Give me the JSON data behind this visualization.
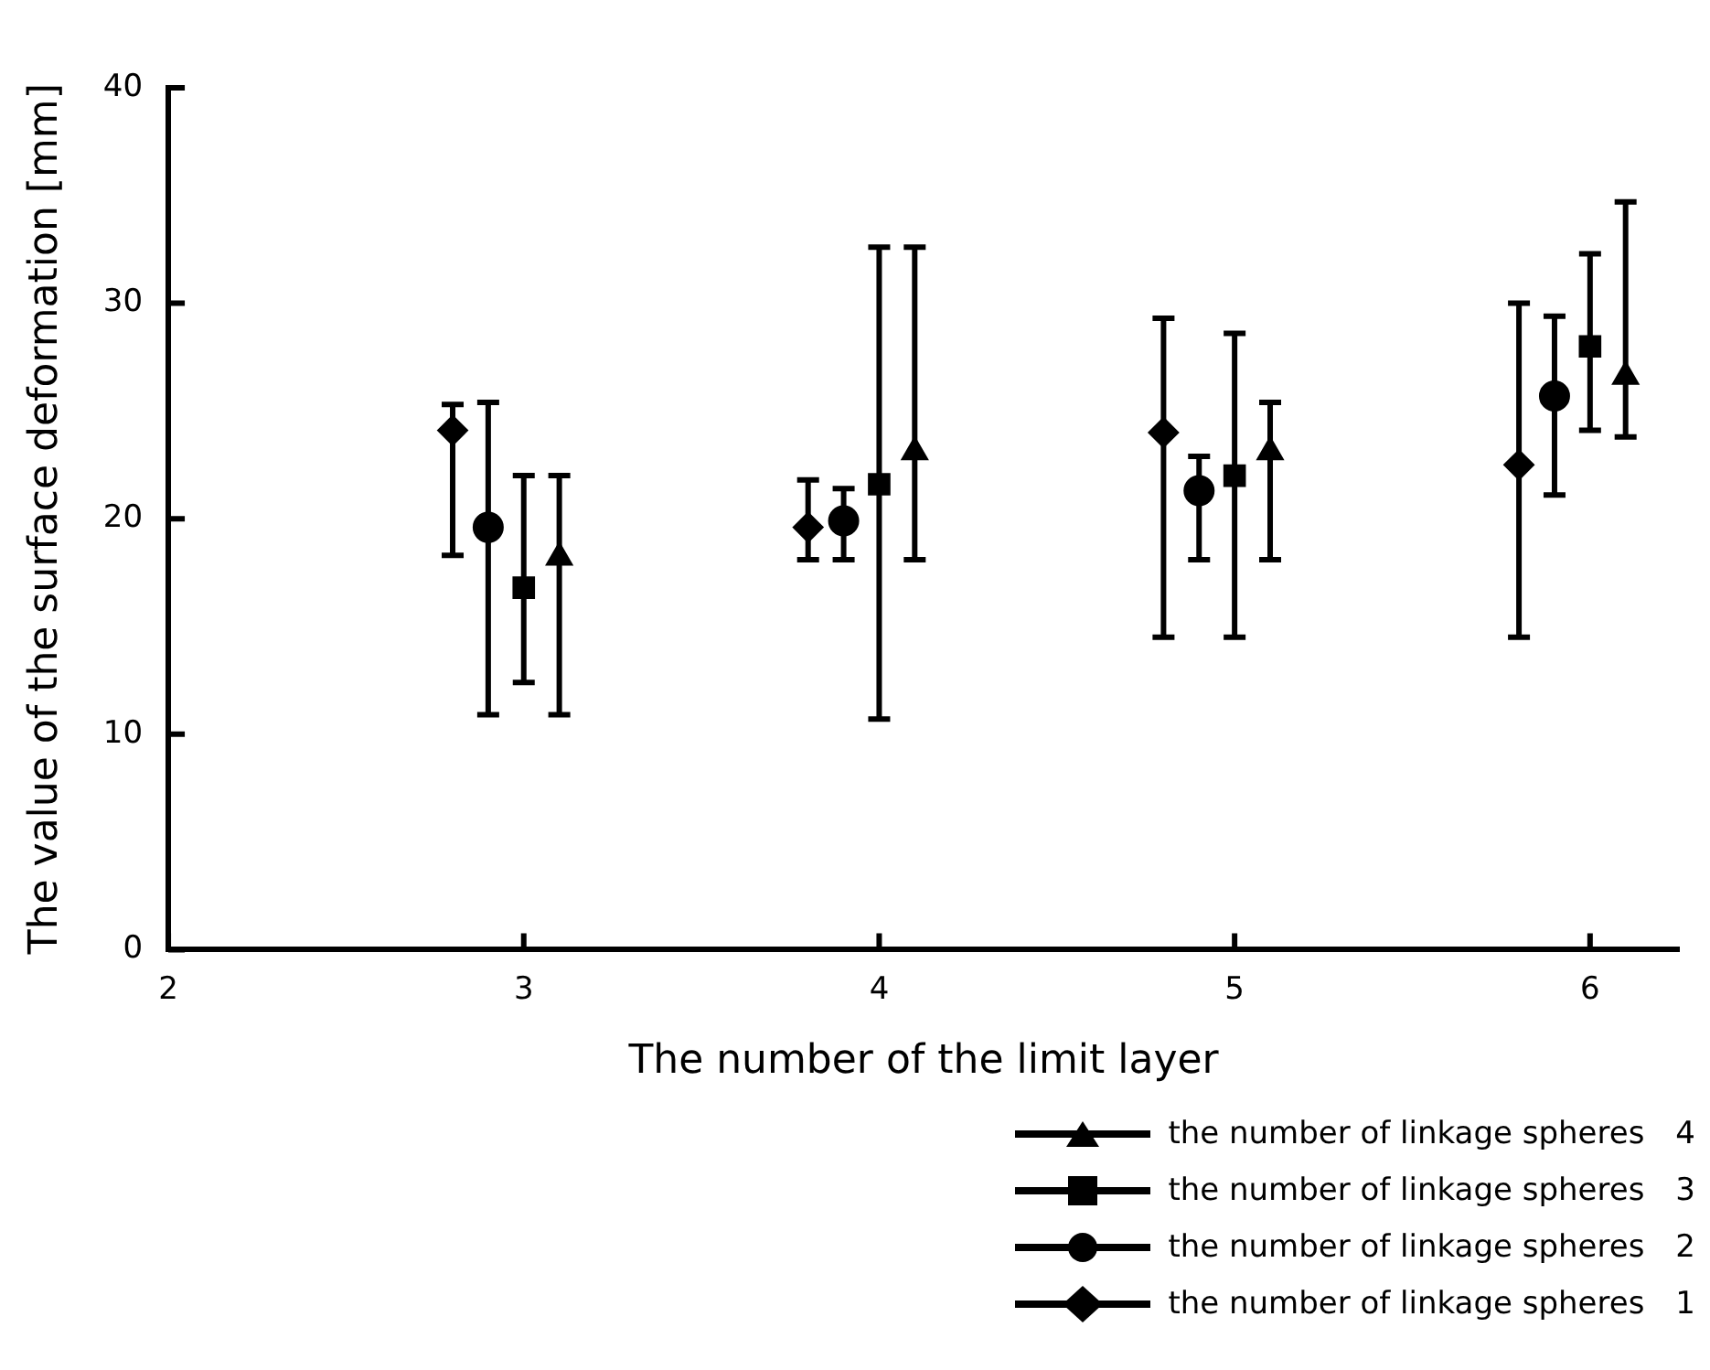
{
  "chart_data": {
    "type": "scatter",
    "xlabel": "The number of the limit layer",
    "ylabel": "The value of the surface deformation [mm]",
    "xlim": [
      2,
      6.25
    ],
    "xticks": [
      2,
      3,
      4,
      5,
      6
    ],
    "ylim": [
      0,
      40
    ],
    "yticks": [
      0,
      10,
      20,
      30,
      40
    ],
    "grid": false,
    "legend": "bottom right",
    "series": [
      {
        "name": "the number of linkage spheres　1",
        "color": "#000000",
        "marker": "diamond",
        "x": [
          2.8,
          3.8,
          4.8,
          5.8
        ],
        "values": [
          24.1,
          19.6,
          24.0,
          22.5
        ],
        "errors": [
          [
            18.3,
            25.3
          ],
          [
            18.1,
            21.8
          ],
          [
            14.5,
            29.3
          ],
          [
            14.5,
            30.0
          ]
        ]
      },
      {
        "name": "the number of linkage spheres　2",
        "color": "#000000",
        "marker": "circle",
        "x": [
          2.9,
          3.9,
          4.9,
          5.9
        ],
        "values": [
          19.6,
          19.9,
          21.3,
          25.7
        ],
        "errors": [
          [
            10.9,
            25.4
          ],
          [
            18.1,
            21.4
          ],
          [
            18.1,
            22.9
          ],
          [
            21.1,
            29.4
          ]
        ]
      },
      {
        "name": "the number of linkage spheres　3",
        "color": "#000000",
        "marker": "square",
        "x": [
          3.0,
          4.0,
          5.0,
          6.0
        ],
        "values": [
          16.8,
          21.6,
          22.0,
          28.0
        ],
        "errors": [
          [
            12.4,
            22.0
          ],
          [
            10.7,
            32.6
          ],
          [
            14.5,
            28.6
          ],
          [
            24.1,
            32.3
          ]
        ]
      },
      {
        "name": "the number of linkage spheres　4",
        "color": "#000000",
        "marker": "triangle",
        "x": [
          3.1,
          4.1,
          5.1,
          6.1
        ],
        "values": [
          18.2,
          23.1,
          23.1,
          26.6
        ],
        "errors": [
          [
            10.9,
            22.0
          ],
          [
            18.1,
            32.6
          ],
          [
            18.1,
            25.4
          ],
          [
            23.8,
            34.7
          ]
        ]
      }
    ]
  }
}
